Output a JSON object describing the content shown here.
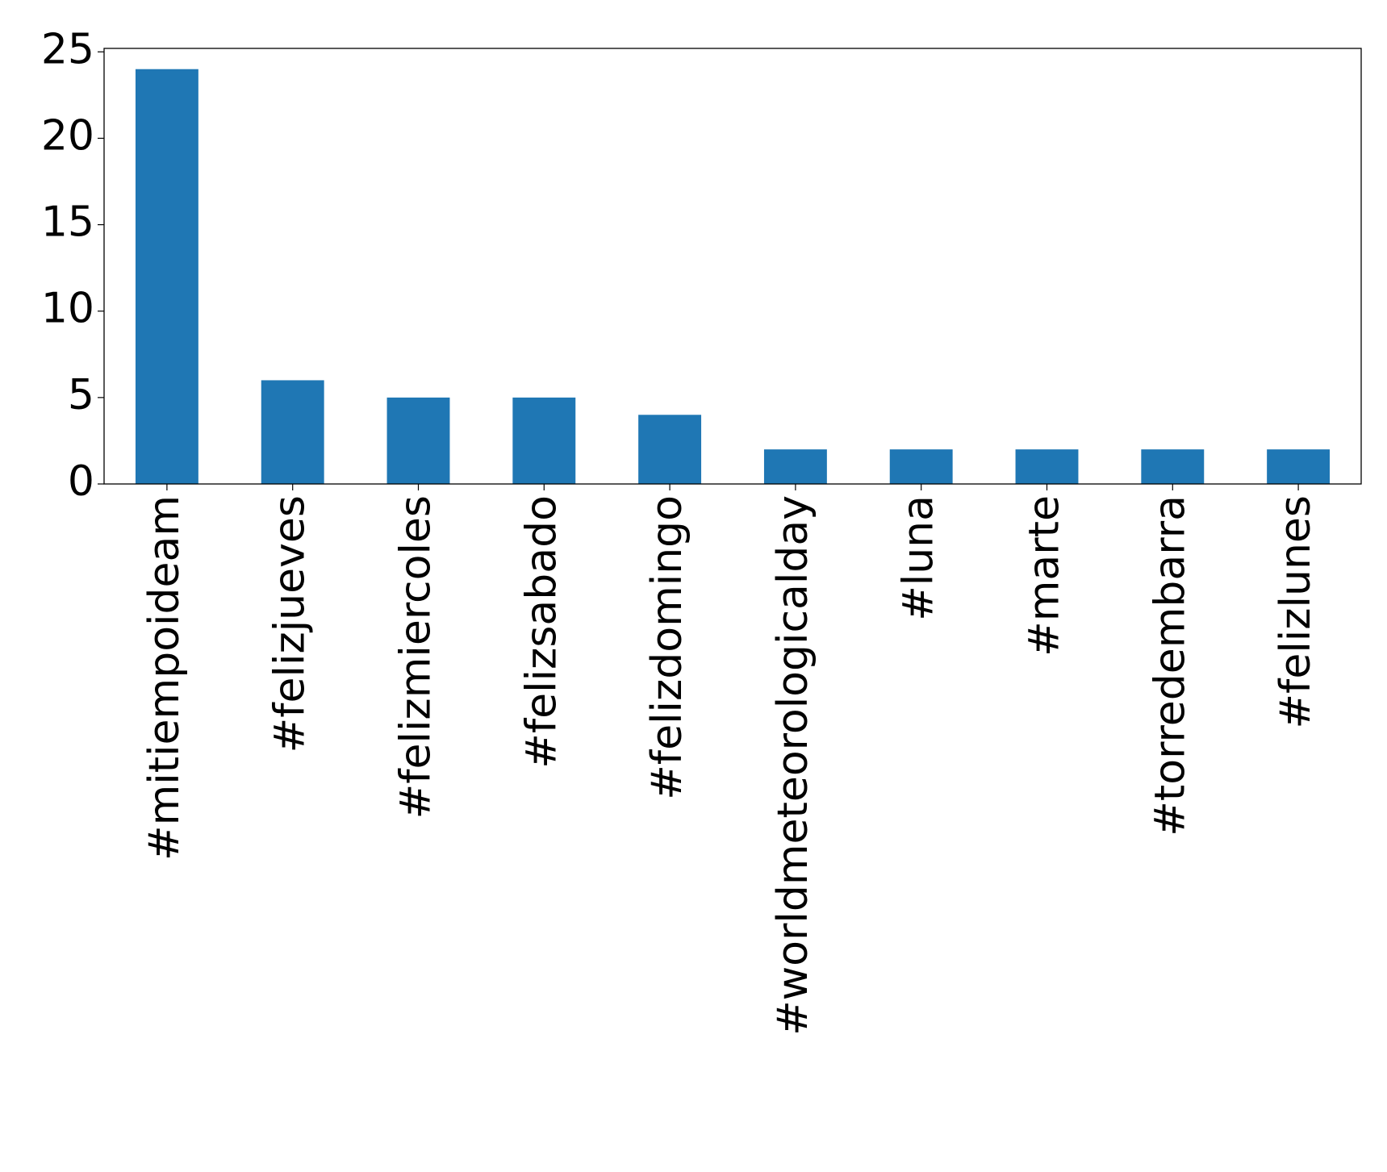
{
  "chart_data": {
    "type": "bar",
    "categories": [
      "#mitiempoideam",
      "#felizjueves",
      "#felizmiercoles",
      "#felizsabado",
      "#felizdomingo",
      "#worldmeteorologicalday",
      "#luna",
      "#marte",
      "#torredembarra",
      "#felizlunes"
    ],
    "values": [
      24,
      6,
      5,
      5,
      4,
      2,
      2,
      2,
      2,
      2
    ],
    "color": "#1f77b4",
    "ylim": [
      0,
      25.2
    ],
    "yticks": [
      0,
      5,
      10,
      15,
      20,
      25
    ],
    "grid": false
  }
}
